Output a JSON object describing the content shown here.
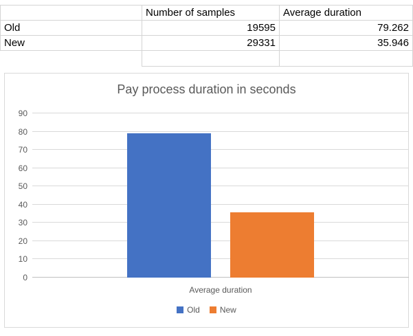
{
  "table": {
    "headers": [
      "",
      "Number of samples",
      "Average duration"
    ],
    "rows": [
      {
        "label": "Old",
        "samples": "19595",
        "avg_duration": "79.262"
      },
      {
        "label": "New",
        "samples": "29331",
        "avg_duration": "35.946"
      }
    ]
  },
  "chart_data": {
    "type": "bar",
    "title": "Pay process duration in seconds",
    "categories": [
      "Average duration"
    ],
    "series": [
      {
        "name": "Old",
        "values": [
          79.262
        ],
        "color": "#4472C4"
      },
      {
        "name": "New",
        "values": [
          35.946
        ],
        "color": "#ED7D31"
      }
    ],
    "xlabel": "Average duration",
    "ylim": [
      0,
      90
    ],
    "yticks": [
      0,
      10,
      20,
      30,
      40,
      50,
      60,
      70,
      80,
      90
    ],
    "grid": true,
    "legend_position": "bottom",
    "colors": {
      "gridline": "#d9d9d9",
      "axis_text": "#595959"
    }
  }
}
